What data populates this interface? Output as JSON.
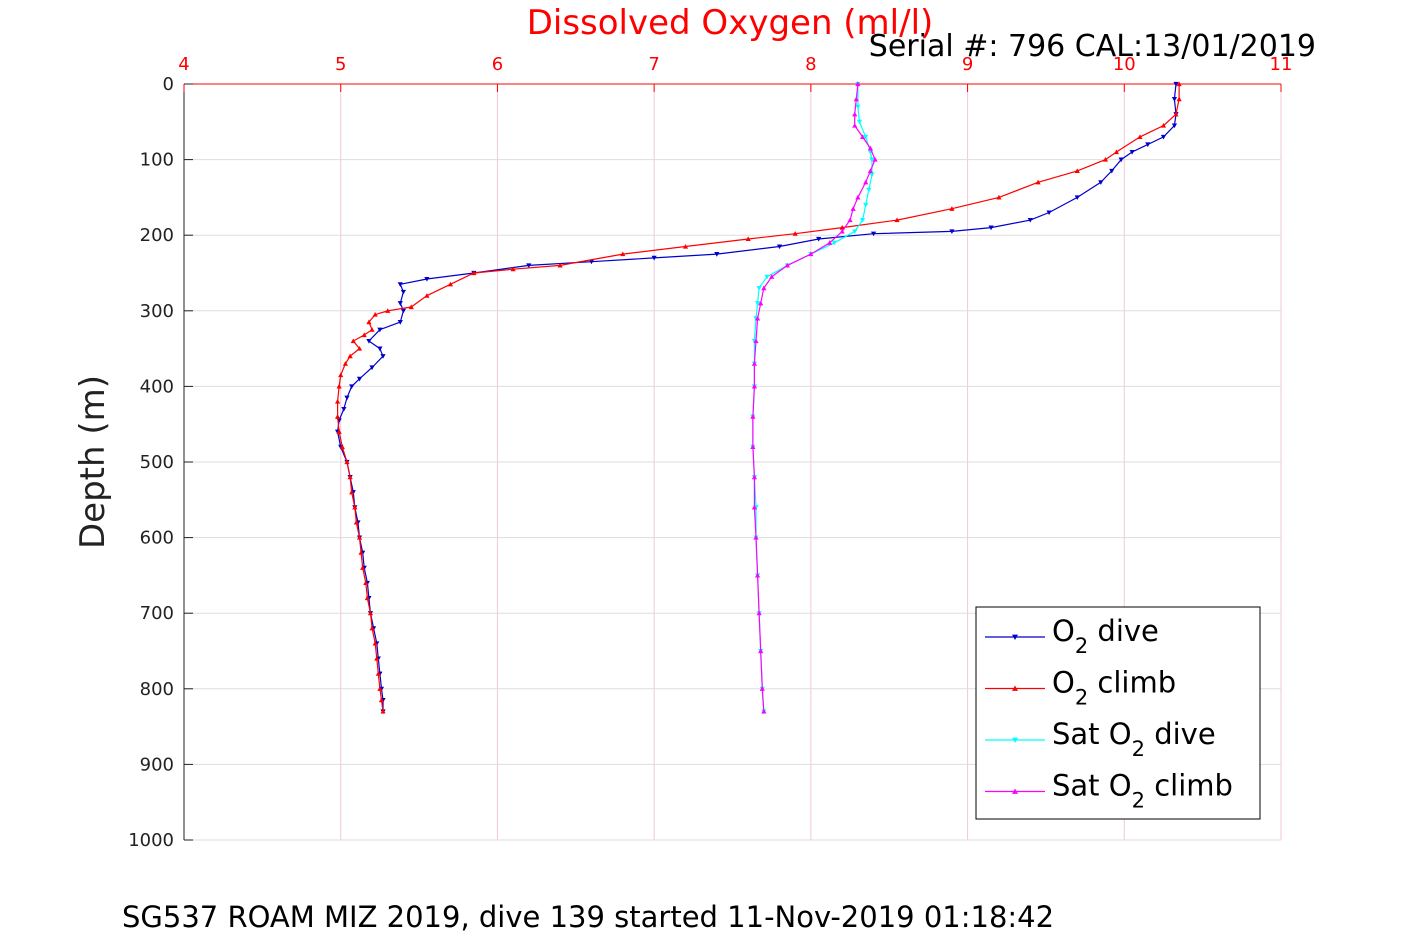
{
  "chart_data": {
    "type": "scatter",
    "title": "Dissolved Oxygen (ml/l)",
    "annotation": "Serial #: 796  CAL:13/01/2019",
    "caption": "SG537 ROAM MIZ 2019, dive 139 started 11-Nov-2019 01:18:42",
    "xlabel": "Dissolved Oxygen (ml/l)",
    "ylabel": "Depth (m)",
    "xlim": [
      4,
      11
    ],
    "ylim": [
      0,
      1000
    ],
    "y_reversed": true,
    "x_axis_position": "top",
    "xticks": [
      "4",
      "5",
      "6",
      "7",
      "8",
      "9",
      "10",
      "11"
    ],
    "yticks": [
      "0",
      "100",
      "200",
      "300",
      "400",
      "500",
      "600",
      "700",
      "800",
      "900",
      "1000"
    ],
    "grid": true,
    "legend_position": "bottom-right",
    "colors": {
      "o2_dive": "#0000cc",
      "o2_climb": "#ff0000",
      "sat_dive": "#00ffff",
      "sat_climb": "#ff00ff",
      "grid": "#f0c8d8",
      "axis_ticks_x": "#ff0000"
    },
    "series": [
      {
        "name": "O2 dive",
        "legend_main": "O",
        "legend_sub": "2",
        "legend_rest": " dive",
        "color": "#0000cc",
        "marker": "triangle-down",
        "points": [
          [
            10.33,
            0
          ],
          [
            10.32,
            20
          ],
          [
            10.33,
            40
          ],
          [
            10.32,
            55
          ],
          [
            10.25,
            70
          ],
          [
            10.15,
            80
          ],
          [
            10.05,
            90
          ],
          [
            9.98,
            100
          ],
          [
            9.92,
            115
          ],
          [
            9.85,
            130
          ],
          [
            9.7,
            150
          ],
          [
            9.52,
            170
          ],
          [
            9.4,
            180
          ],
          [
            9.15,
            190
          ],
          [
            8.9,
            195
          ],
          [
            8.4,
            198
          ],
          [
            8.05,
            205
          ],
          [
            7.8,
            215
          ],
          [
            7.4,
            225
          ],
          [
            7.0,
            230
          ],
          [
            6.6,
            235
          ],
          [
            6.2,
            240
          ],
          [
            5.85,
            250
          ],
          [
            5.55,
            258
          ],
          [
            5.38,
            265
          ],
          [
            5.4,
            275
          ],
          [
            5.38,
            290
          ],
          [
            5.4,
            300
          ],
          [
            5.38,
            315
          ],
          [
            5.25,
            325
          ],
          [
            5.18,
            340
          ],
          [
            5.25,
            350
          ],
          [
            5.27,
            360
          ],
          [
            5.2,
            375
          ],
          [
            5.12,
            390
          ],
          [
            5.07,
            400
          ],
          [
            5.04,
            415
          ],
          [
            5.02,
            430
          ],
          [
            4.99,
            445
          ],
          [
            4.98,
            460
          ],
          [
            5.0,
            480
          ],
          [
            5.04,
            500
          ],
          [
            5.06,
            520
          ],
          [
            5.08,
            540
          ],
          [
            5.09,
            560
          ],
          [
            5.11,
            580
          ],
          [
            5.12,
            600
          ],
          [
            5.14,
            620
          ],
          [
            5.15,
            640
          ],
          [
            5.17,
            660
          ],
          [
            5.18,
            680
          ],
          [
            5.19,
            700
          ],
          [
            5.21,
            720
          ],
          [
            5.23,
            740
          ],
          [
            5.24,
            760
          ],
          [
            5.25,
            780
          ],
          [
            5.26,
            800
          ],
          [
            5.27,
            815
          ],
          [
            5.27,
            830
          ]
        ]
      },
      {
        "name": "O2 climb",
        "legend_main": "O",
        "legend_sub": "2",
        "legend_rest": " climb",
        "color": "#ff0000",
        "marker": "triangle-up",
        "points": [
          [
            5.27,
            830
          ],
          [
            5.26,
            815
          ],
          [
            5.25,
            800
          ],
          [
            5.24,
            780
          ],
          [
            5.23,
            760
          ],
          [
            5.22,
            740
          ],
          [
            5.2,
            720
          ],
          [
            5.19,
            700
          ],
          [
            5.17,
            680
          ],
          [
            5.16,
            660
          ],
          [
            5.14,
            640
          ],
          [
            5.13,
            620
          ],
          [
            5.12,
            600
          ],
          [
            5.1,
            580
          ],
          [
            5.09,
            560
          ],
          [
            5.07,
            540
          ],
          [
            5.06,
            520
          ],
          [
            5.04,
            500
          ],
          [
            5.01,
            480
          ],
          [
            4.99,
            460
          ],
          [
            4.98,
            440
          ],
          [
            4.98,
            420
          ],
          [
            4.99,
            400
          ],
          [
            5.0,
            385
          ],
          [
            5.03,
            370
          ],
          [
            5.06,
            360
          ],
          [
            5.12,
            350
          ],
          [
            5.08,
            340
          ],
          [
            5.15,
            332
          ],
          [
            5.2,
            325
          ],
          [
            5.18,
            315
          ],
          [
            5.22,
            305
          ],
          [
            5.3,
            300
          ],
          [
            5.45,
            295
          ],
          [
            5.55,
            280
          ],
          [
            5.7,
            265
          ],
          [
            5.85,
            250
          ],
          [
            6.1,
            245
          ],
          [
            6.4,
            240
          ],
          [
            6.8,
            225
          ],
          [
            7.2,
            215
          ],
          [
            7.6,
            205
          ],
          [
            7.9,
            198
          ],
          [
            8.2,
            190
          ],
          [
            8.55,
            180
          ],
          [
            8.9,
            165
          ],
          [
            9.2,
            150
          ],
          [
            9.45,
            130
          ],
          [
            9.7,
            115
          ],
          [
            9.88,
            100
          ],
          [
            9.95,
            90
          ],
          [
            10.1,
            70
          ],
          [
            10.25,
            55
          ],
          [
            10.33,
            40
          ],
          [
            10.35,
            20
          ],
          [
            10.35,
            0
          ]
        ]
      },
      {
        "name": "Sat O2 dive",
        "legend_main": "Sat O",
        "legend_sub": "2",
        "legend_rest": " dive",
        "color": "#00ffff",
        "marker": "triangle-down",
        "points": [
          [
            8.3,
            0
          ],
          [
            8.3,
            30
          ],
          [
            8.31,
            50
          ],
          [
            8.35,
            70
          ],
          [
            8.38,
            90
          ],
          [
            8.39,
            100
          ],
          [
            8.39,
            120
          ],
          [
            8.37,
            140
          ],
          [
            8.35,
            160
          ],
          [
            8.33,
            180
          ],
          [
            8.28,
            195
          ],
          [
            8.15,
            210
          ],
          [
            8.0,
            225
          ],
          [
            7.85,
            240
          ],
          [
            7.72,
            255
          ],
          [
            7.67,
            270
          ],
          [
            7.66,
            290
          ],
          [
            7.65,
            310
          ],
          [
            7.64,
            340
          ],
          [
            7.64,
            370
          ],
          [
            7.64,
            400
          ],
          [
            7.63,
            440
          ],
          [
            7.63,
            480
          ],
          [
            7.64,
            520
          ],
          [
            7.65,
            560
          ],
          [
            7.65,
            600
          ],
          [
            7.66,
            650
          ],
          [
            7.67,
            700
          ],
          [
            7.68,
            750
          ],
          [
            7.69,
            800
          ],
          [
            7.7,
            830
          ]
        ]
      },
      {
        "name": "Sat O2 climb",
        "legend_main": "Sat O",
        "legend_sub": "2",
        "legend_rest": " climb",
        "color": "#ff00ff",
        "marker": "triangle-up",
        "points": [
          [
            7.7,
            830
          ],
          [
            7.69,
            800
          ],
          [
            7.68,
            750
          ],
          [
            7.67,
            700
          ],
          [
            7.66,
            650
          ],
          [
            7.65,
            600
          ],
          [
            7.64,
            560
          ],
          [
            7.64,
            520
          ],
          [
            7.63,
            480
          ],
          [
            7.63,
            440
          ],
          [
            7.64,
            400
          ],
          [
            7.64,
            370
          ],
          [
            7.65,
            340
          ],
          [
            7.66,
            310
          ],
          [
            7.68,
            290
          ],
          [
            7.7,
            270
          ],
          [
            7.75,
            255
          ],
          [
            7.85,
            240
          ],
          [
            8.0,
            225
          ],
          [
            8.12,
            210
          ],
          [
            8.2,
            195
          ],
          [
            8.25,
            180
          ],
          [
            8.27,
            165
          ],
          [
            8.3,
            150
          ],
          [
            8.35,
            130
          ],
          [
            8.38,
            115
          ],
          [
            8.41,
            100
          ],
          [
            8.38,
            85
          ],
          [
            8.33,
            70
          ],
          [
            8.28,
            55
          ],
          [
            8.28,
            40
          ],
          [
            8.29,
            20
          ],
          [
            8.3,
            0
          ]
        ]
      }
    ]
  }
}
